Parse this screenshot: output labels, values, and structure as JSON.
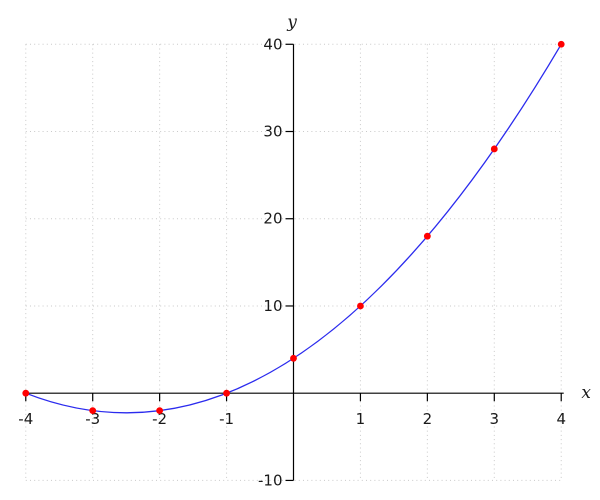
{
  "chart_data": {
    "type": "line",
    "title": "",
    "xlabel": "x",
    "ylabel": "y",
    "xlim": [
      -4,
      4
    ],
    "ylim": [
      -10,
      40
    ],
    "x_ticks": [
      -4,
      -3,
      -2,
      -1,
      1,
      2,
      3,
      4
    ],
    "y_ticks": [
      40,
      30,
      20,
      10,
      -10
    ],
    "grid": true,
    "legend": "none",
    "points": [
      [
        -4,
        0
      ],
      [
        -3,
        -2
      ],
      [
        -2,
        -2
      ],
      [
        -1,
        0
      ],
      [
        0,
        4
      ],
      [
        1,
        10
      ],
      [
        2,
        18
      ],
      [
        3,
        28
      ],
      [
        4,
        40
      ]
    ],
    "curve": {
      "kind": "quadratic",
      "coefficients": {
        "a": 1,
        "b": 5,
        "c": 4
      },
      "x_range": [
        -4,
        4
      ]
    },
    "colors": {
      "curve": "#2b2bee",
      "points": "#ff0000",
      "grid": "#c9c9c9",
      "axis": "#000000",
      "tick_text": "#1a1a1a"
    }
  }
}
